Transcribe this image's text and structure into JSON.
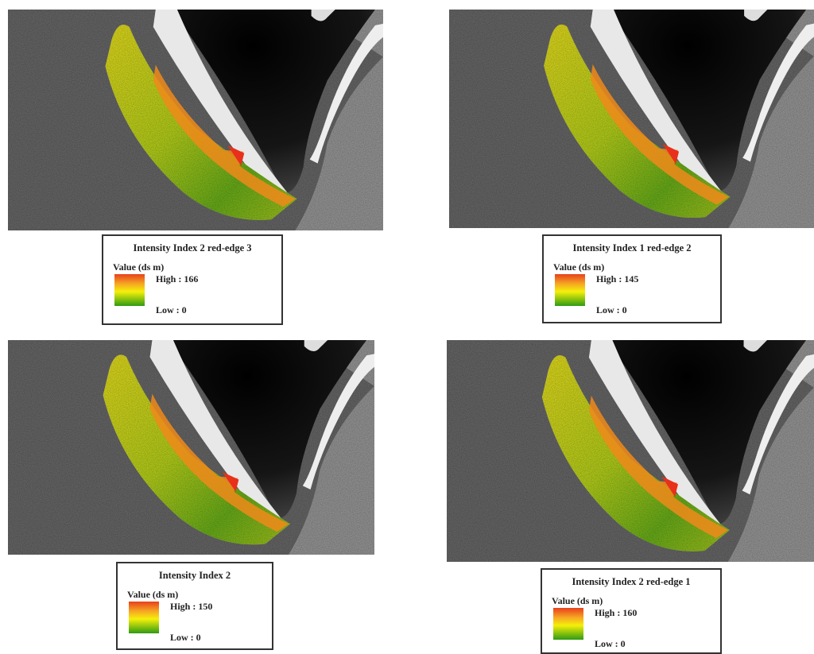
{
  "panels": [
    {
      "title": "Intensity Index 2 red-edge 3",
      "value_label": "Value (ds m)",
      "high": "High : 166",
      "low": "Low : 0"
    },
    {
      "title": "Intensity Index 1 red-edge 2",
      "value_label": "Value (ds m)",
      "high": "High : 145",
      "low": "Low : 0"
    },
    {
      "title": "Intensity Index 2",
      "value_label": "Value (ds m)",
      "high": "High : 150",
      "low": "Low : 0"
    },
    {
      "title": "Intensity Index 2 red-edge 1",
      "value_label": "Value (ds m)",
      "high": "High : 160",
      "low": "Low : 0"
    }
  ]
}
